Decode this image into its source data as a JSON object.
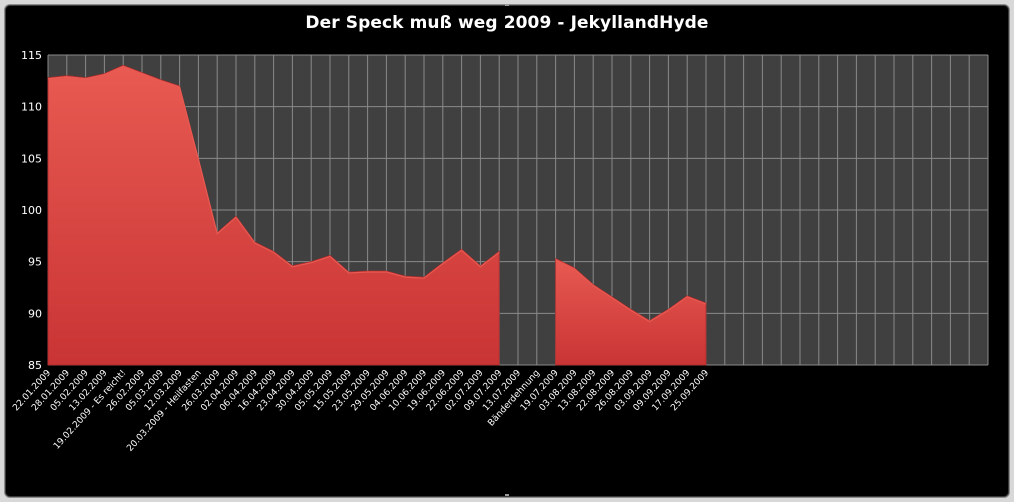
{
  "window": {
    "title": "Der Speck muß weg 2009 - JekyllandHyde"
  },
  "colors": {
    "background": "#000000",
    "plot_area": "#404040",
    "gridline": "#8a8a8a",
    "area_fill": "#d63b3b",
    "area_highlight": "#e85a52",
    "text": "#ffffff"
  },
  "chart_data": {
    "type": "area",
    "title": "Der Speck muß weg 2009 - JekyllandHyde",
    "xlabel": "",
    "ylabel": "",
    "ylim": [
      85,
      115
    ],
    "yticks": [
      85,
      90,
      95,
      100,
      105,
      110,
      115
    ],
    "grid": true,
    "legend": "none",
    "categories": [
      "22.01.2009",
      "28.01.2009",
      "05.02.2009",
      "13.02.2009",
      "19.02.2009 - Es reicht!",
      "26.02.2009",
      "05.03.2009",
      "12.03.2009",
      "20.03.2009 - Heilfasten",
      "26.03.2009",
      "02.04.2009",
      "06.04.2009",
      "16.04.2009",
      "23.04.2009",
      "30.04.2009",
      "05.05.2009",
      "15.05.2009",
      "23.05.2009",
      "29.05.2009",
      "04.06.2009",
      "10.06.2009",
      "19.06.2009",
      "22.06.2009",
      "02.07.2009",
      "09.07.2009",
      "13.07.2009",
      "Bänderdehnung",
      "19.07.2009",
      "03.08.2009",
      "13.08.2009",
      "22.08.2009",
      "26.08.2009",
      "03.09.2009",
      "09.09.2009",
      "17.09.2009",
      "25.09.2009"
    ],
    "total_slots": 50,
    "series": [
      {
        "values": [
          112.8,
          113.0,
          112.8,
          113.2,
          114.0,
          113.3,
          112.6,
          112.0,
          105.0,
          97.8,
          99.4,
          96.9,
          96.0,
          94.6,
          95.0,
          95.6,
          94.0,
          94.1,
          94.1,
          93.6,
          93.5,
          94.9,
          96.2,
          94.6,
          96.0,
          null,
          null,
          95.3,
          94.4,
          92.8,
          91.6,
          90.4,
          89.3,
          90.4,
          91.7,
          91.0
        ]
      }
    ]
  }
}
